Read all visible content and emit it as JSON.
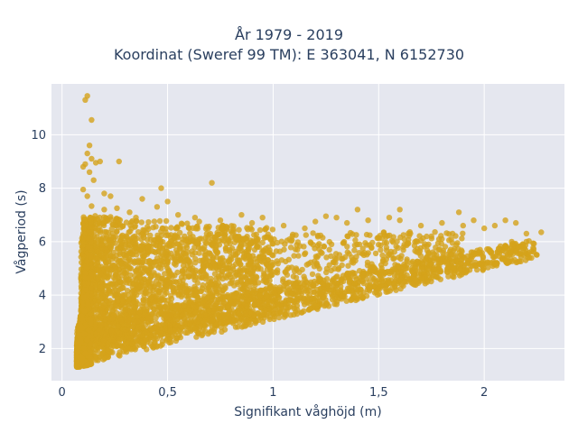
{
  "chart_data": {
    "type": "scatter",
    "title": [
      "År 1979 - 2019",
      "Koordinat (Sweref 99 TM): E 363041, N 6152730"
    ],
    "xlabel": "Signifikant våghöjd (m)",
    "ylabel": "Vågperiod (s)",
    "xlim": [
      -0.05,
      2.38
    ],
    "ylim": [
      0.8,
      11.9
    ],
    "x_ticks": [
      0,
      0.5,
      1,
      1.5,
      2
    ],
    "x_tick_labels": [
      "0",
      "0,5",
      "1",
      "1,5",
      "2"
    ],
    "y_ticks": [
      2,
      4,
      6,
      8,
      10
    ],
    "y_tick_labels": [
      "2",
      "4",
      "6",
      "8",
      "10"
    ],
    "grid": true,
    "marker_color": "#d4a21a",
    "background_color": "#e5e7ef",
    "points": [
      [
        0.12,
        11.45
      ],
      [
        0.11,
        11.3
      ],
      [
        0.14,
        10.55
      ],
      [
        0.13,
        9.6
      ],
      [
        0.12,
        9.3
      ],
      [
        0.14,
        9.1
      ],
      [
        0.11,
        8.9
      ],
      [
        0.16,
        8.95
      ],
      [
        0.18,
        9.0
      ],
      [
        0.27,
        9.0
      ],
      [
        0.1,
        8.8
      ],
      [
        0.13,
        8.6
      ],
      [
        0.15,
        8.3
      ],
      [
        0.1,
        7.95
      ],
      [
        0.12,
        7.7
      ],
      [
        0.2,
        7.8
      ],
      [
        0.23,
        7.7
      ],
      [
        0.47,
        8.0
      ],
      [
        0.71,
        8.2
      ],
      [
        0.2,
        7.2
      ],
      [
        0.26,
        7.25
      ],
      [
        0.32,
        7.1
      ],
      [
        0.45,
        7.3
      ],
      [
        0.5,
        7.5
      ],
      [
        0.38,
        7.6
      ],
      [
        0.35,
        6.9
      ],
      [
        0.55,
        7.0
      ],
      [
        0.63,
        6.9
      ],
      [
        0.75,
        6.8
      ],
      [
        0.9,
        6.7
      ],
      [
        1.05,
        6.6
      ],
      [
        1.15,
        6.5
      ],
      [
        1.2,
        6.75
      ],
      [
        1.3,
        6.9
      ],
      [
        1.35,
        6.7
      ],
      [
        1.45,
        6.8
      ],
      [
        1.55,
        6.9
      ],
      [
        1.7,
        6.6
      ],
      [
        1.8,
        6.7
      ],
      [
        1.9,
        6.6
      ],
      [
        1.95,
        6.8
      ],
      [
        2.05,
        6.6
      ],
      [
        2.1,
        6.8
      ],
      [
        2.15,
        6.7
      ],
      [
        2.2,
        6.3
      ],
      [
        2.27,
        6.35
      ],
      [
        2.13,
        6.0
      ],
      [
        2.2,
        6.0
      ],
      [
        2.0,
        6.5
      ],
      [
        1.85,
        6.3
      ],
      [
        1.75,
        6.2
      ],
      [
        1.65,
        6.3
      ],
      [
        1.98,
        5.7
      ],
      [
        2.07,
        5.75
      ],
      [
        1.6,
        6.8
      ],
      [
        1.88,
        7.1
      ],
      [
        1.6,
        7.2
      ],
      [
        1.4,
        7.2
      ],
      [
        1.25,
        6.95
      ],
      [
        0.85,
        7.0
      ],
      [
        0.95,
        6.9
      ],
      [
        0.65,
        6.75
      ],
      [
        0.58,
        6.2
      ],
      [
        0.33,
        6.5
      ],
      [
        0.3,
        5.9
      ],
      [
        1.18,
        3.5
      ],
      [
        1.2,
        3.6
      ],
      [
        1.1,
        3.5
      ],
      [
        0.55,
        3.1
      ],
      [
        0.3,
        2.7
      ]
    ],
    "bands": [
      {
        "x_start": 0.07,
        "x_end": 2.25,
        "y_low_start": 1.35,
        "y_low_end": 5.4,
        "y_high_start": 3.0,
        "y_high_end": 6.1
      },
      {
        "x_start": 0.09,
        "x_end": 1.9,
        "y_low_start": 1.6,
        "y_low_end": 4.9,
        "y_high_start": 6.2,
        "y_high_end": 6.4
      },
      {
        "x_start": 0.1,
        "x_end": 1.0,
        "y_low_start": 2.0,
        "y_low_end": 3.3,
        "y_high_start": 7.0,
        "y_high_end": 6.5
      },
      {
        "x_start": 0.07,
        "x_end": 0.14,
        "y_low_start": 1.3,
        "y_low_end": 1.4,
        "y_high_start": 1.9,
        "y_high_end": 7.4
      }
    ]
  }
}
